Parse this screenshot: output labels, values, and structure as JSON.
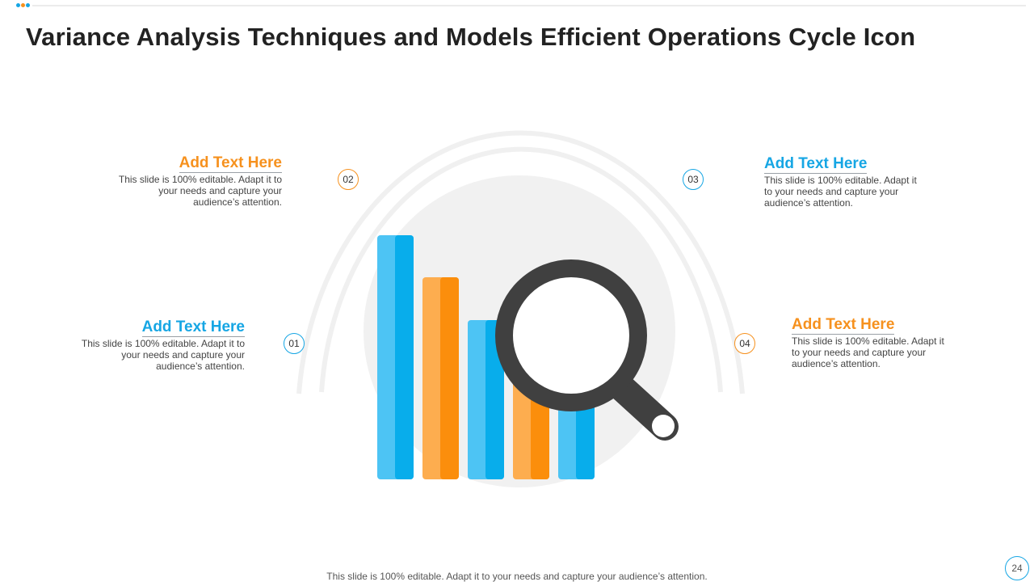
{
  "title": "Variance Analysis Techniques and Models Efficient Operations Cycle Icon",
  "colors": {
    "blue": "#16a6e4",
    "light_blue": "#4dc4f4",
    "orange": "#f6911e",
    "light_orange": "#fdad4f",
    "dark_gray": "#404040"
  },
  "icons": [
    "bar-chart-icon",
    "magnifying-glass-icon"
  ],
  "points": [
    {
      "number": "01",
      "heading": "Add Text Here",
      "text": "This slide is 100% editable. Adapt it to your needs and capture your audience’s attention."
    },
    {
      "number": "02",
      "heading": "Add Text Here",
      "text": "This slide is 100% editable. Adapt it to your needs and capture your audience’s attention."
    },
    {
      "number": "03",
      "heading": "Add Text Here",
      "text": "This slide is 100% editable. Adapt it to your needs and capture your audience’s attention."
    },
    {
      "number": "04",
      "heading": "Add Text Here",
      "text": "This slide is 100% editable. Adapt it to your needs and capture your audience’s attention."
    }
  ],
  "footer": "This slide is 100% editable. Adapt it to your needs and capture your audience’s attention.",
  "page_number": "24"
}
